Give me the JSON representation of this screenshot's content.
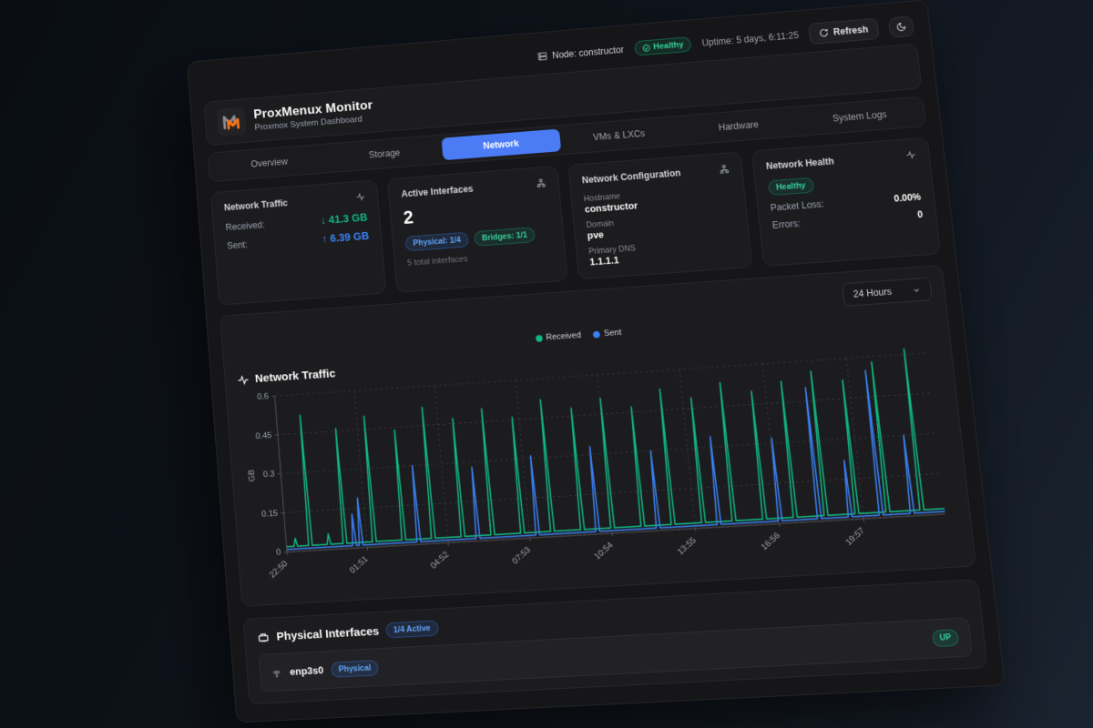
{
  "toolbar": {
    "node_label": "Node: constructor",
    "health_badge": "Healthy",
    "uptime": "Uptime: 5 days, 6:11:25",
    "refresh_label": "Refresh"
  },
  "header": {
    "title": "ProxMenux Monitor",
    "subtitle": "Proxmox System Dashboard"
  },
  "tabs": {
    "items": [
      "Overview",
      "Storage",
      "Network",
      "VMs & LXCs",
      "Hardware",
      "System Logs"
    ],
    "active": "Network"
  },
  "cards": {
    "traffic": {
      "title": "Network Traffic",
      "received_label": "Received:",
      "received_value": "↓ 41.3 GB",
      "sent_label": "Sent:",
      "sent_value": "↑ 6.39 GB"
    },
    "interfaces": {
      "title": "Active Interfaces",
      "count": "2",
      "physical_badge": "Physical: 1/4",
      "bridges_badge": "Bridges: 1/1",
      "total": "5 total interfaces"
    },
    "config": {
      "title": "Network Configuration",
      "hostname_label": "Hostname",
      "hostname": "constructor",
      "domain_label": "Domain",
      "domain": "pve",
      "dns_label": "Primary DNS",
      "dns": "1.1.1.1"
    },
    "health": {
      "title": "Network Health",
      "status": "Healthy",
      "packet_loss_label": "Packet Loss:",
      "packet_loss": "0.00%",
      "errors_label": "Errors:",
      "errors": "0"
    }
  },
  "time_range": "24 Hours",
  "chart_data": {
    "type": "line",
    "title": "Network Traffic",
    "ylabel": "GB",
    "ylim": [
      0,
      0.6
    ],
    "yticks": [
      0,
      0.15,
      0.3,
      0.45,
      0.6
    ],
    "xticks": [
      "22:50",
      "01:51",
      "04:52",
      "07:53",
      "10:54",
      "13:55",
      "16:56",
      "19:57"
    ],
    "xtick_interval_hours": 3.0167,
    "x_span_hours": 24,
    "grid": "dashed",
    "legend_position": "top-center",
    "series": [
      {
        "name": "Received",
        "color": "#10b981",
        "baseline": 0.02,
        "spikes": [
          [
            0.35,
            0.05
          ],
          [
            0.9,
            0.52
          ],
          [
            1.6,
            0.06
          ],
          [
            2.2,
            0.46
          ],
          [
            3.3,
            0.5
          ],
          [
            4.4,
            0.44
          ],
          [
            5.5,
            0.52
          ],
          [
            6.6,
            0.47
          ],
          [
            7.7,
            0.5
          ],
          [
            8.8,
            0.46
          ],
          [
            9.9,
            0.52
          ],
          [
            11.0,
            0.48
          ],
          [
            12.1,
            0.51
          ],
          [
            13.2,
            0.47
          ],
          [
            14.3,
            0.53
          ],
          [
            15.4,
            0.49
          ],
          [
            16.5,
            0.54
          ],
          [
            17.6,
            0.5
          ],
          [
            18.7,
            0.53
          ],
          [
            19.8,
            0.56
          ],
          [
            20.9,
            0.52
          ],
          [
            22.0,
            0.58
          ],
          [
            23.2,
            0.62
          ]
        ]
      },
      {
        "name": "Sent",
        "color": "#3b82f6",
        "baseline": 0.01,
        "spikes": [
          [
            2.55,
            0.13
          ],
          [
            2.8,
            0.19
          ],
          [
            4.95,
            0.3
          ],
          [
            7.15,
            0.28
          ],
          [
            9.35,
            0.31
          ],
          [
            11.55,
            0.33
          ],
          [
            13.75,
            0.3
          ],
          [
            15.95,
            0.34
          ],
          [
            18.15,
            0.32
          ],
          [
            19.55,
            0.5
          ],
          [
            20.65,
            0.22
          ],
          [
            21.75,
            0.55
          ],
          [
            22.85,
            0.3
          ]
        ]
      }
    ]
  },
  "physical": {
    "title": "Physical Interfaces",
    "active_badge": "1/4 Active",
    "rows": [
      {
        "name": "enp3s0",
        "type_badge": "Physical",
        "status": "UP"
      }
    ]
  },
  "colors": {
    "accent_blue": "#4b7cf6",
    "series_green": "#10b981",
    "series_blue": "#3b82f6",
    "logo_orange": "#f97316",
    "healthy_green": "#34d399"
  }
}
